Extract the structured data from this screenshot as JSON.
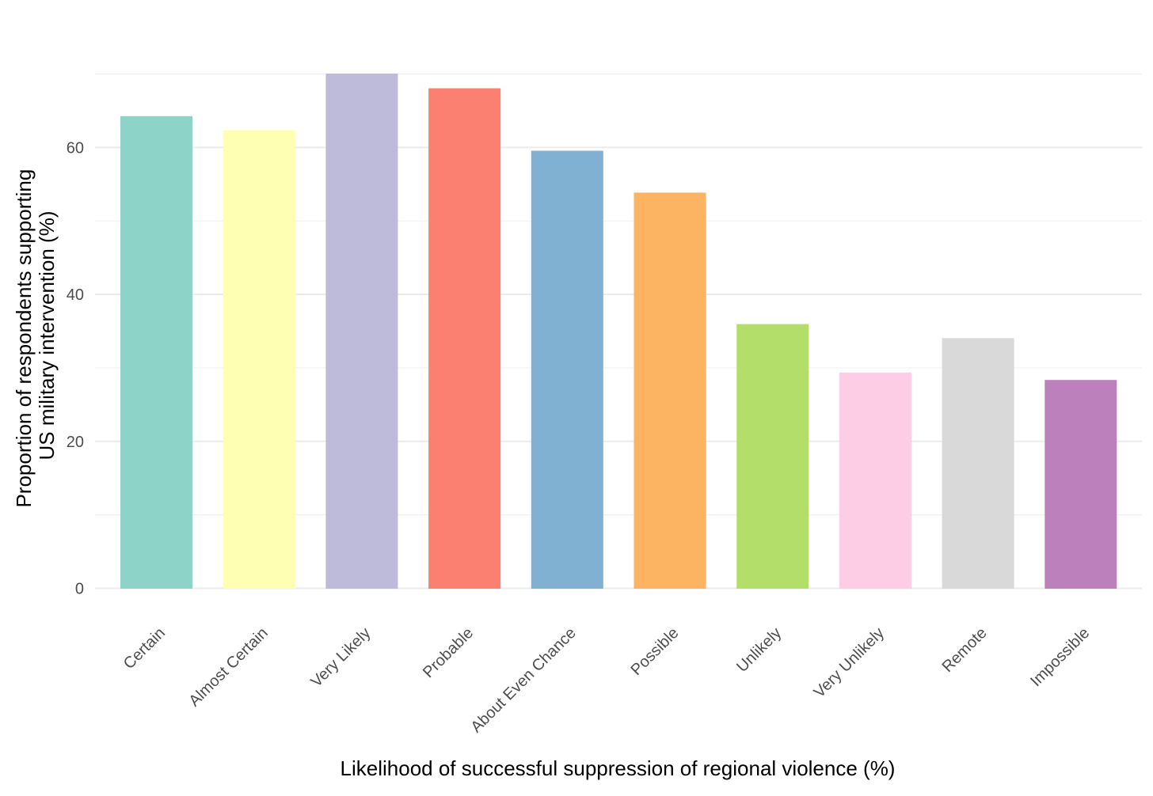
{
  "chart_data": {
    "type": "bar",
    "title": "",
    "xlabel": "Likelihood of successful suppression of regional violence (%)",
    "ylabel_lines": [
      "Proportion of respondents supporting",
      "US military intervention (%)"
    ],
    "categories": [
      "Certain",
      "Almost Certain",
      "Very Likely",
      "Probable",
      "About Even Chance",
      "Possible",
      "Unlikely",
      "Very Unlikely",
      "Remote",
      "Impossible"
    ],
    "values": [
      64.2,
      62.3,
      70.0,
      68.0,
      59.5,
      53.8,
      35.9,
      29.3,
      34.0,
      28.3
    ],
    "colors": [
      "#8DD3C7",
      "#FFFFB3",
      "#BEBADA",
      "#FB8072",
      "#80B1D3",
      "#FDB462",
      "#B3DE69",
      "#FCCDE5",
      "#D9D9D9",
      "#BC80BD"
    ],
    "ylim": [
      0,
      71
    ],
    "y_ticks": [
      0,
      20,
      40,
      60
    ],
    "y_tick_labels": [
      "0",
      "20",
      "40",
      "60"
    ],
    "y_minor_ticks": [
      10,
      30,
      50,
      70
    ],
    "grid": true,
    "legend": "none"
  }
}
